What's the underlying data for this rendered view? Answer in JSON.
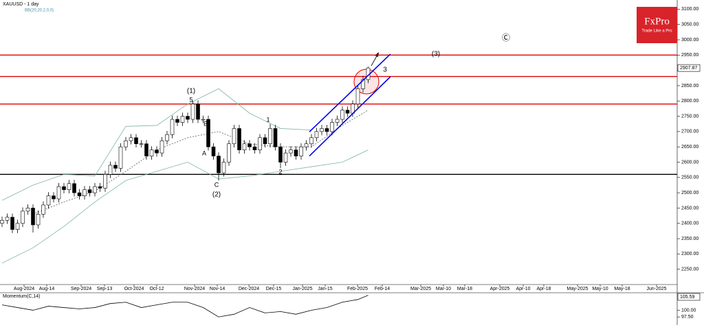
{
  "chart_data": [
    {
      "type": "candlestick",
      "title": "XAUUSD - 1 day",
      "indicator": "BB(20,20,2,0,0)",
      "ohlc": [
        [
          2400,
          2422,
          2388,
          2410
        ],
        [
          2410,
          2432,
          2398,
          2420
        ],
        [
          2420,
          2432,
          2368,
          2380
        ],
        [
          2380,
          2412,
          2368,
          2400
        ],
        [
          2400,
          2452,
          2388,
          2440
        ],
        [
          2440,
          2462,
          2428,
          2450
        ],
        [
          2450,
          2462,
          2370,
          2395
        ],
        [
          2395,
          2442,
          2383,
          2430
        ],
        [
          2430,
          2472,
          2418,
          2460
        ],
        [
          2460,
          2502,
          2448,
          2490
        ],
        [
          2490,
          2502,
          2468,
          2480
        ],
        [
          2480,
          2532,
          2468,
          2520
        ],
        [
          2520,
          2532,
          2498,
          2510
        ],
        [
          2510,
          2542,
          2498,
          2530
        ],
        [
          2530,
          2542,
          2488,
          2500
        ],
        [
          2500,
          2512,
          2478,
          2490
        ],
        [
          2490,
          2522,
          2478,
          2510
        ],
        [
          2510,
          2522,
          2488,
          2500
        ],
        [
          2500,
          2532,
          2488,
          2520
        ],
        [
          2520,
          2532,
          2503,
          2515
        ],
        [
          2515,
          2572,
          2503,
          2560
        ],
        [
          2560,
          2602,
          2548,
          2590
        ],
        [
          2590,
          2602,
          2568,
          2580
        ],
        [
          2580,
          2662,
          2568,
          2650
        ],
        [
          2650,
          2682,
          2638,
          2670
        ],
        [
          2670,
          2692,
          2658,
          2680
        ],
        [
          2680,
          2692,
          2648,
          2660
        ],
        [
          2660,
          2672,
          2648,
          2660
        ],
        [
          2660,
          2672,
          2608,
          2620
        ],
        [
          2620,
          2652,
          2608,
          2640
        ],
        [
          2640,
          2652,
          2618,
          2630
        ],
        [
          2630,
          2682,
          2618,
          2670
        ],
        [
          2670,
          2702,
          2658,
          2690
        ],
        [
          2690,
          2752,
          2678,
          2740
        ],
        [
          2740,
          2752,
          2718,
          2730
        ],
        [
          2730,
          2762,
          2718,
          2750
        ],
        [
          2750,
          2762,
          2728,
          2740
        ],
        [
          2740,
          2800,
          2728,
          2790
        ],
        [
          2790,
          2802,
          2728,
          2740
        ],
        [
          2740,
          2752,
          2728,
          2740
        ],
        [
          2740,
          2752,
          2638,
          2650
        ],
        [
          2650,
          2662,
          2608,
          2620
        ],
        [
          2620,
          2632,
          2540,
          2565
        ],
        [
          2565,
          2612,
          2553,
          2600
        ],
        [
          2600,
          2672,
          2588,
          2660
        ],
        [
          2660,
          2722,
          2648,
          2710
        ],
        [
          2710,
          2722,
          2628,
          2640
        ],
        [
          2640,
          2672,
          2628,
          2660
        ],
        [
          2660,
          2672,
          2638,
          2650
        ],
        [
          2650,
          2662,
          2628,
          2640
        ],
        [
          2640,
          2692,
          2628,
          2680
        ],
        [
          2680,
          2692,
          2648,
          2660
        ],
        [
          2660,
          2725,
          2648,
          2710
        ],
        [
          2710,
          2722,
          2638,
          2650
        ],
        [
          2650,
          2662,
          2580,
          2600
        ],
        [
          2600,
          2642,
          2588,
          2630
        ],
        [
          2630,
          2652,
          2618,
          2640
        ],
        [
          2640,
          2652,
          2608,
          2620
        ],
        [
          2620,
          2662,
          2608,
          2650
        ],
        [
          2650,
          2672,
          2638,
          2660
        ],
        [
          2660,
          2692,
          2648,
          2680
        ],
        [
          2680,
          2712,
          2668,
          2700
        ],
        [
          2700,
          2722,
          2688,
          2710
        ],
        [
          2710,
          2722,
          2688,
          2700
        ],
        [
          2700,
          2742,
          2688,
          2730
        ],
        [
          2730,
          2752,
          2718,
          2740
        ],
        [
          2740,
          2782,
          2728,
          2770
        ],
        [
          2770,
          2782,
          2748,
          2760
        ],
        [
          2760,
          2802,
          2748,
          2790
        ],
        [
          2790,
          2852,
          2778,
          2840
        ],
        [
          2840,
          2882,
          2828,
          2870
        ],
        [
          2870,
          2912,
          2858,
          2907.87
        ]
      ],
      "bollinger": {
        "x": [
          0,
          6,
          12,
          18,
          24,
          30,
          36,
          42,
          48,
          54,
          60,
          66,
          71
        ],
        "upper": [
          2475,
          2525,
          2560,
          2555,
          2717,
          2720,
          2790,
          2840,
          2760,
          2710,
          2705,
          null,
          null
        ],
        "middle": [
          null,
          2430,
          2470,
          2505,
          2570,
          2640,
          2680,
          2700,
          2660,
          2650,
          2650,
          2720,
          2770
        ],
        "lower": [
          2270,
          2320,
          2390,
          2470,
          2540,
          2570,
          2600,
          2545,
          2555,
          2570,
          2585,
          2600,
          2640
        ]
      },
      "ylim": [
        2200,
        3130
      ],
      "yticks": [
        {
          "value": 3100,
          "label": "3100.00"
        },
        {
          "value": 3050,
          "label": "3050.00"
        },
        {
          "value": 3000,
          "label": "3000.00"
        },
        {
          "value": 2950,
          "label": "2950.00"
        },
        {
          "value": 2900,
          "label": "2900.00"
        },
        {
          "value": 2850,
          "label": "2850.00"
        },
        {
          "value": 2800,
          "label": "2800.00"
        },
        {
          "value": 2750,
          "label": "2750.00"
        },
        {
          "value": 2700,
          "label": "2700.00"
        },
        {
          "value": 2650,
          "label": "2650.00"
        },
        {
          "value": 2600,
          "label": "2600.00"
        },
        {
          "value": 2550,
          "label": "2550.00"
        },
        {
          "value": 2500,
          "label": "2500.00"
        },
        {
          "value": 2450,
          "label": "2450.00"
        },
        {
          "value": 2400,
          "label": "2400.00"
        },
        {
          "value": 2350,
          "label": "2350.00"
        },
        {
          "value": 2300,
          "label": "2300.00"
        },
        {
          "value": 2250,
          "label": "2250.00"
        }
      ],
      "last_price": 2907.87,
      "hlines": [
        {
          "value": 2950,
          "color": "#e00000"
        },
        {
          "value": 2880,
          "color": "#e00000"
        },
        {
          "value": 2790,
          "color": "#e00000"
        },
        {
          "value": 2560,
          "color": "#000000"
        }
      ],
      "channel": {
        "x": [
          59.6,
          75.3
        ],
        "upper": [
          2699,
          2953
        ],
        "lower": [
          2620,
          2879
        ],
        "color": "#0000ee"
      },
      "xtick_labels": [
        "Aug-2024",
        "Aug-14",
        "Sep-2024",
        "Sep-13",
        "Oct-2024",
        "Oct-12",
        "Nov-2024",
        "Nov-14",
        "Dec-2024",
        "Dec-15",
        "Jan-2025",
        "Jan-15",
        "Feb-2025",
        "Feb-14",
        "Mar-2025",
        "Mar-10",
        "Mar-18",
        "Apr-2025",
        "Apr-10",
        "Apr-18",
        "May-2025",
        "May-10",
        "May-18",
        "Jun-2025"
      ],
      "annotations": [
        "(1)",
        "5",
        "B",
        "A",
        "C",
        "(2)",
        "1",
        "2",
        "3",
        "(3)",
        "Ⓒ"
      ],
      "logo": {
        "name": "FxPro",
        "tagline": "Trade Like a Pro"
      }
    },
    {
      "type": "line",
      "title": "Momentum(C,14)",
      "x": [
        0,
        3,
        6,
        9,
        12,
        15,
        18,
        21,
        24,
        27,
        30,
        33,
        36,
        39,
        42,
        45,
        48,
        51,
        54,
        57,
        60,
        63,
        66,
        69,
        71
      ],
      "values": [
        102,
        101,
        100,
        101.5,
        101,
        100.5,
        101,
        102.5,
        103,
        101,
        102,
        103,
        103,
        101,
        97.5,
        98.5,
        101,
        99,
        99.5,
        98.5,
        100,
        101,
        103,
        104,
        105.59
      ],
      "ylim": [
        95,
        106
      ],
      "yticks": [
        {
          "value": 100,
          "label": "100.00"
        },
        {
          "value": 97.5,
          "label": "97.50"
        }
      ],
      "last_value": 105.59
    }
  ]
}
